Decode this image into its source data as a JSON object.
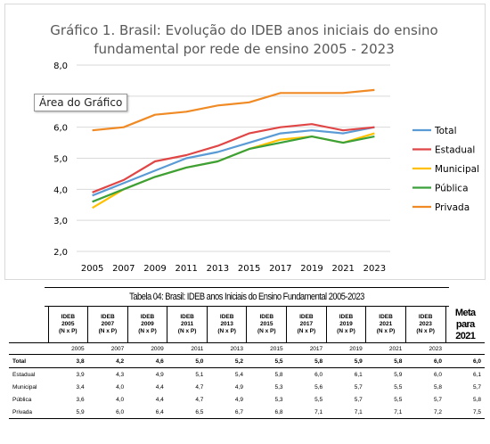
{
  "chart_data": {
    "type": "line",
    "title_lines": [
      "Gráfico 1. Brasil: Evolução do IDEB anos iniciais do ensino",
      "fundamental por rede de ensino 2005 - 2023"
    ],
    "categories": [
      "2005",
      "2007",
      "2009",
      "2011",
      "2013",
      "2015",
      "2017",
      "2019",
      "2021",
      "2023"
    ],
    "ylim": [
      2.0,
      8.0
    ],
    "yticks": [
      "2,0",
      "3,0",
      "4,0",
      "5,0",
      "6,0",
      "7,0",
      "8,0"
    ],
    "series": [
      {
        "name": "Total",
        "color": "#5b9bd5",
        "values": [
          3.8,
          4.2,
          4.6,
          5.0,
          5.2,
          5.5,
          5.8,
          5.9,
          5.8,
          6.0
        ]
      },
      {
        "name": "Estadual",
        "color": "#e04646",
        "values": [
          3.9,
          4.3,
          4.9,
          5.1,
          5.4,
          5.8,
          6.0,
          6.1,
          5.9,
          6.0
        ]
      },
      {
        "name": "Municipal",
        "color": "#ffc000",
        "values": [
          3.4,
          4.0,
          4.4,
          4.7,
          4.9,
          5.3,
          5.6,
          5.7,
          5.5,
          5.8
        ]
      },
      {
        "name": "Pública",
        "color": "#3aa13a",
        "values": [
          3.6,
          4.0,
          4.4,
          4.7,
          4.9,
          5.3,
          5.5,
          5.7,
          5.5,
          5.7
        ]
      },
      {
        "name": "Privada",
        "color": "#f08a24",
        "values": [
          5.9,
          6.0,
          6.4,
          6.5,
          6.7,
          6.8,
          7.1,
          7.1,
          7.1,
          7.2
        ]
      }
    ],
    "legend_position": "right",
    "grid": true
  },
  "tooltip": "Área do Gráfico",
  "table": {
    "caption": "Tabela 04: Brasil: IDEB anos Iniciais do Ensino Fundamental 2005-2023",
    "headers": [
      [
        "IDEB",
        "2005",
        "(N x P)"
      ],
      [
        "IDEB",
        "2007",
        "(N x P)"
      ],
      [
        "IDEB",
        "2009",
        "(N x P)"
      ],
      [
        "IDEB",
        "2011",
        "(N x P)"
      ],
      [
        "IDEB",
        "2013",
        "(N x P)"
      ],
      [
        "IDEB",
        "2015",
        "(N x P)"
      ],
      [
        "IDEB",
        "2017",
        "(N x P)"
      ],
      [
        "IDEB",
        "2019",
        "(N x P)"
      ],
      [
        "IDEB",
        "2021",
        "(N x P)"
      ],
      [
        "IDEB",
        "2023",
        "(N x P)"
      ]
    ],
    "meta_header": [
      "Meta para",
      "2021"
    ],
    "years": [
      "2005",
      "2007",
      "2009",
      "2011",
      "2013",
      "2015",
      "2017",
      "2019",
      "2021",
      "2023",
      ""
    ],
    "rows": [
      {
        "label": "Total",
        "values": [
          "3,8",
          "4,2",
          "4,6",
          "5,0",
          "5,2",
          "5,5",
          "5,8",
          "5,9",
          "5,8",
          "6,0",
          "6,0"
        ]
      },
      {
        "label": "Estadual",
        "values": [
          "3,9",
          "4,3",
          "4,9",
          "5,1",
          "5,4",
          "5,8",
          "6,0",
          "6,1",
          "5,9",
          "6,0",
          "6,1"
        ]
      },
      {
        "label": "Municipal",
        "values": [
          "3,4",
          "4,0",
          "4,4",
          "4,7",
          "4,9",
          "5,3",
          "5,6",
          "5,7",
          "5,5",
          "5,8",
          "5,7"
        ]
      },
      {
        "label": "Pública",
        "values": [
          "3,6",
          "4,0",
          "4,4",
          "4,7",
          "4,9",
          "5,3",
          "5,5",
          "5,7",
          "5,5",
          "5,7",
          "5,8"
        ]
      },
      {
        "label": "Privada",
        "values": [
          "5,9",
          "6,0",
          "6,4",
          "6,5",
          "6,7",
          "6,8",
          "7,1",
          "7,1",
          "7,1",
          "7,2",
          "7,5"
        ]
      }
    ]
  }
}
